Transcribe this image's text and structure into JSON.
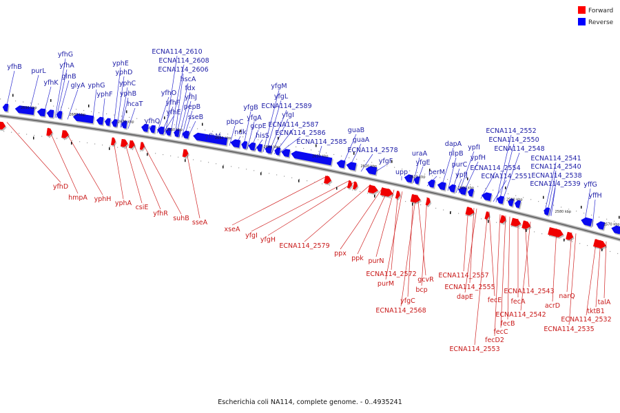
{
  "legend": {
    "forward_label": "Forward",
    "reverse_label": "Reverse",
    "forward_color": "#ff0000",
    "reverse_color": "#0000ff"
  },
  "caption": "Escherichia coli NA114, complete genome. - 0..4935241",
  "ticks": [
    "2690 kbp",
    "2680 kbp",
    "2670 kbp",
    "2660 kbp",
    "2650 kbp",
    "2640 kbp",
    "2630 kbp",
    "2620 kbp",
    "2610 kbp",
    "2600 kbp",
    "2590 kbp",
    "2580 kbp",
    "2570 kbp"
  ],
  "reverse_genes": [
    "yfhB",
    "purL",
    "yfhK",
    "yfhG",
    "yfhA",
    "glnB",
    "glyA",
    "yphG",
    "yphF",
    "yphE",
    "yphD",
    "yphC",
    "yphB",
    "hcaT",
    "yfhQ",
    "yfhO",
    "yfhF",
    "yfhE",
    "ECNA114_2610",
    "ECNA114_2608",
    "ECNA114_2606",
    "hscA",
    "fdx",
    "yfhJ",
    "pepB",
    "sseB",
    "yfhM",
    "pbpC",
    "ndk",
    "yfgB",
    "yfgA",
    "gcpE",
    "hisS",
    "yfgM",
    "yfgL",
    "ECNA114_2589",
    "yfgI",
    "ECNA114_2587",
    "ECNA114_2586",
    "ECNA114_2585",
    "guaB",
    "guaA",
    "ECNA114_2578",
    "yfgF",
    "upp",
    "uraA",
    "yfgE",
    "perM",
    "dapA",
    "nlpB",
    "purC",
    "ypfJ",
    "ypfI",
    "ypfH",
    "ECNA114_2552",
    "ECNA114_2550",
    "ECNA114_2548",
    "ECNA114_2554",
    "ECNA114_2551",
    "ECNA114_2541",
    "ECNA114_2540",
    "ECNA114_2538",
    "ECNA114_2539",
    "yffG",
    "yffH"
  ],
  "forward_genes": [
    "yfhD",
    "hmpA",
    "yphH",
    "yphA",
    "csiE",
    "yfhR",
    "suhB",
    "sseA",
    "xseA",
    "yfgI",
    "yfgH",
    "ECNA114_2579",
    "ppx",
    "ppk",
    "purN",
    "ECNA114_2572",
    "purM",
    "gcvR",
    "bcp",
    "yfgC",
    "ECNA114_2568",
    "ECNA114_2557",
    "ECNA114_2555",
    "dapE",
    "fecE",
    "fecD2",
    "ECNA114_2553",
    "fecB",
    "fecC",
    "fecA",
    "ECNA114_2543",
    "ECNA114_2542",
    "acrD",
    "narQ",
    "ECNA114_2535",
    "ECNA114_2532",
    "tktB1",
    "talA"
  ]
}
